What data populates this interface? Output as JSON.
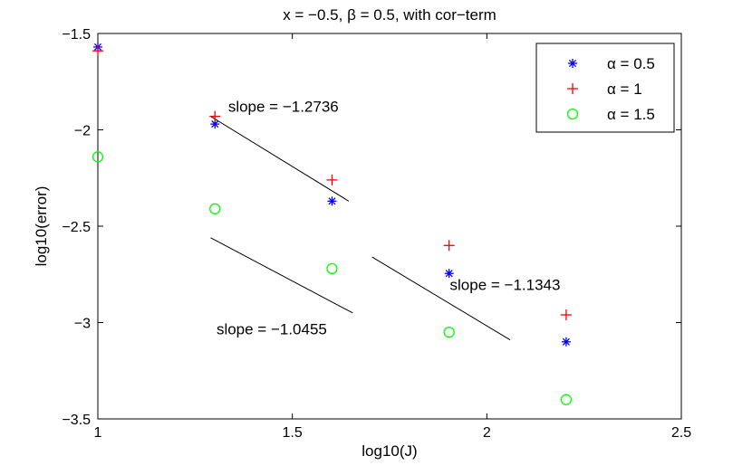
{
  "chart_data": {
    "type": "scatter",
    "title": "x = −0.5, β = 0.5, with cor−term",
    "xlabel": "log10(J)",
    "ylabel": "log10(error)",
    "xlim": [
      1,
      2.5
    ],
    "ylim": [
      -3.5,
      -1.5
    ],
    "xticks": [
      1,
      1.5,
      2,
      2.5
    ],
    "xtick_labels": [
      "1",
      "1.5",
      "2",
      "2.5"
    ],
    "yticks": [
      -1.5,
      -2,
      -2.5,
      -3,
      -3.5
    ],
    "ytick_labels": [
      "−1.5",
      "−2",
      "−2.5",
      "−3",
      "−3.5"
    ],
    "grid": false,
    "legend_position": "top-right",
    "series": [
      {
        "name": "α = 0.5",
        "marker": "asterisk",
        "color": "#0000ff",
        "x": [
          1.0,
          1.301,
          1.602,
          1.903,
          2.204
        ],
        "y": [
          -1.57,
          -1.97,
          -2.37,
          -2.745,
          -3.1
        ]
      },
      {
        "name": "α = 1",
        "marker": "plus",
        "color": "#ff0000",
        "x": [
          1.0,
          1.301,
          1.602,
          1.903,
          2.204
        ],
        "y": [
          -1.59,
          -1.93,
          -2.26,
          -2.6,
          -2.96
        ]
      },
      {
        "name": "α = 1.5",
        "marker": "circle",
        "color": "#00ff00",
        "x": [
          1.0,
          1.301,
          1.602,
          1.903,
          2.204
        ],
        "y": [
          -2.14,
          -2.41,
          -2.72,
          -3.05,
          -3.4
        ]
      }
    ],
    "reference_lines": [
      {
        "x": [
          1.29,
          1.645
        ],
        "y": [
          -1.93,
          -2.37
        ]
      },
      {
        "x": [
          1.29,
          1.655
        ],
        "y": [
          -2.56,
          -2.95
        ]
      },
      {
        "x": [
          1.705,
          2.06
        ],
        "y": [
          -2.66,
          -3.09
        ]
      }
    ],
    "annotations": [
      {
        "text": "slope = −1.2736",
        "x": 1.335,
        "y": -1.905
      },
      {
        "text": "slope = −1.0455",
        "x": 1.305,
        "y": -3.06
      },
      {
        "text": "slope = −1.1343",
        "x": 1.905,
        "y": -2.83
      }
    ]
  }
}
